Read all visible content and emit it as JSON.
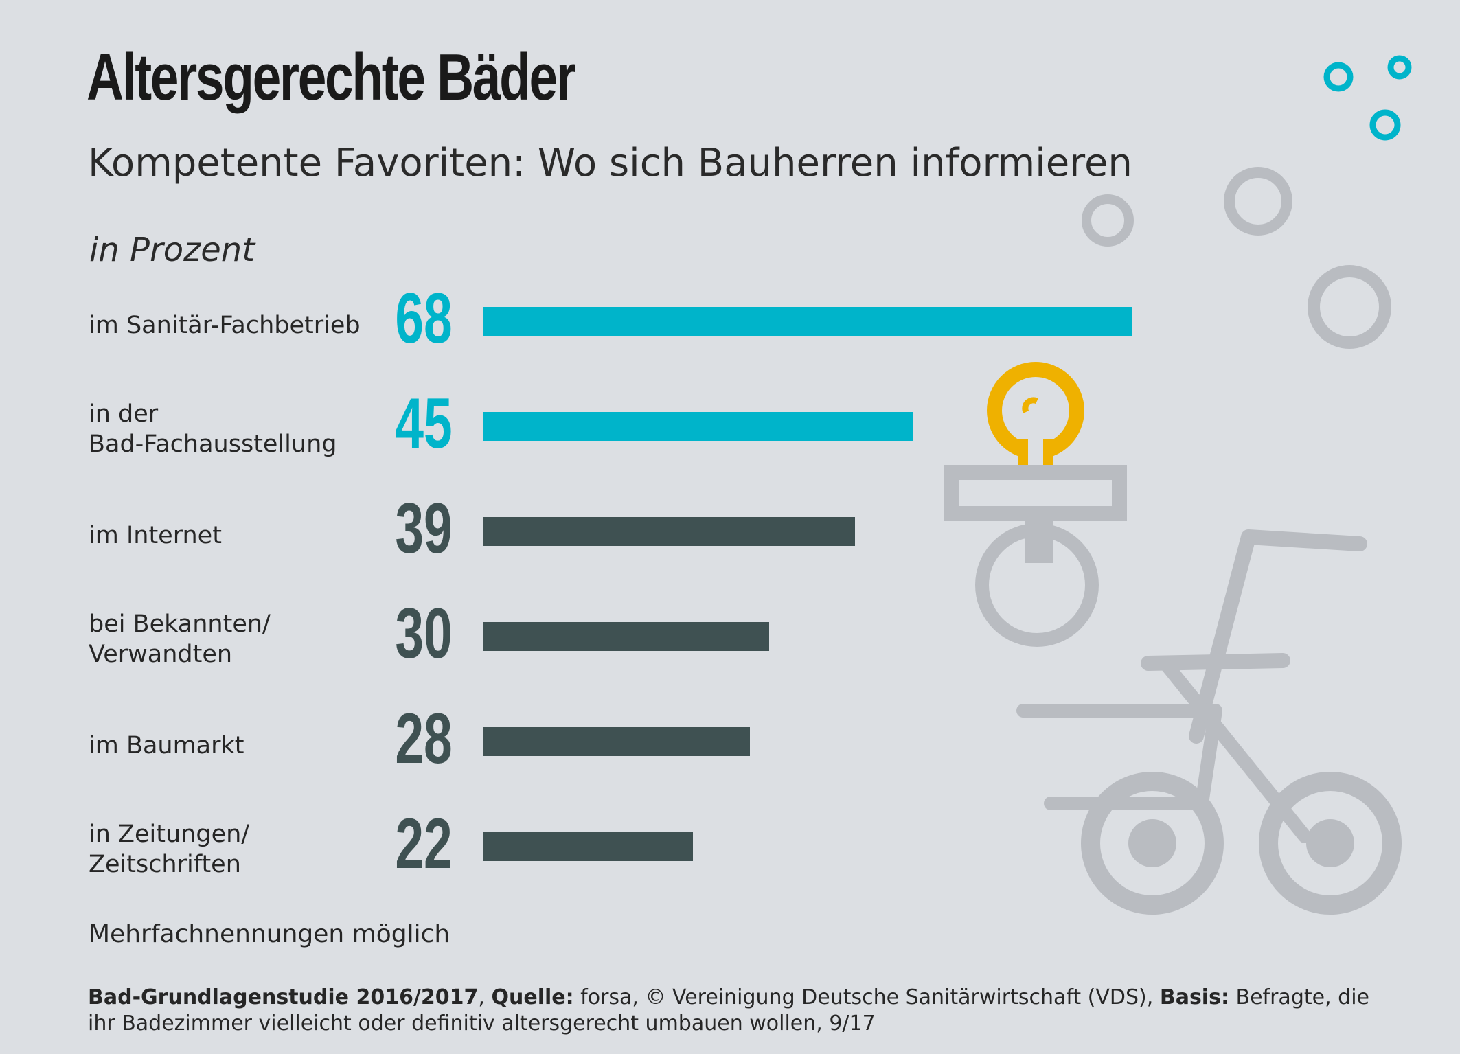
{
  "title": "Altersgerechte Bäder",
  "subtitle": "Kompetente Favoriten: Wo sich Bauherren informieren",
  "unit": "in Prozent",
  "note": "Mehrfachnennungen möglich",
  "source": {
    "study_label": "Bad-Grundlagenstudie 2016/2017",
    "source_label": "Quelle:",
    "source_text": "forsa, © Vereinigung Deutsche Sanitärwirtschaft (VDS),",
    "basis_label": "Basis:",
    "basis_text": "Befragte, die ihr Badezimmer vielleicht oder definitiv altersgerecht umbauen wollen, 9/17"
  },
  "colors": {
    "highlight": "#00b4ca",
    "default": "#3f5152",
    "decoration": "#b9bcc1",
    "pacifier_ring": "#efb100"
  },
  "chart_data": {
    "type": "bar",
    "orientation": "horizontal",
    "xlim": [
      0,
      100
    ],
    "grid": false,
    "categories": [
      [
        "im Sanitär-Fachbetrieb"
      ],
      [
        "in der",
        "Bad-Fachausstellung"
      ],
      [
        "im Internet"
      ],
      [
        "bei Bekannten/",
        "Verwandten"
      ],
      [
        "im Baumarkt"
      ],
      [
        "in Zeitungen/",
        "Zeitschriften"
      ]
    ],
    "values": [
      68,
      45,
      39,
      30,
      28,
      22
    ],
    "highlighted": [
      true,
      true,
      false,
      false,
      false,
      false
    ]
  }
}
